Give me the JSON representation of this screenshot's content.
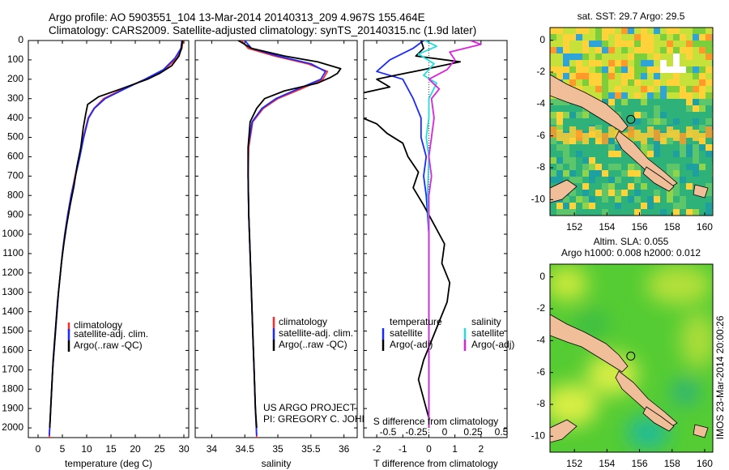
{
  "header": {
    "line1": "Argo profile: AO 5903551_104 13-Mar-2014 20140313_209 4.967S 155.464E",
    "line2": "Climatology: CARS2009. Satellite-adjusted climatology: synTS_20140315.nc (1.9d later)"
  },
  "colors": {
    "climatology": "#ff2a2a",
    "satellite": "#1a2aff",
    "argo": "#000000",
    "salinity_satellite": "#22dddd",
    "salinity_argo": "#dd22dd"
  },
  "chart_data": [
    {
      "type": "line",
      "id": "temperature",
      "title": "",
      "xlabel": "temperature (deg C)",
      "ylabel": "",
      "xlim": [
        -2,
        31
      ],
      "ylim": [
        2050,
        0
      ],
      "xticks": [
        0,
        5,
        10,
        15,
        20,
        25,
        30
      ],
      "yticks": [
        0,
        100,
        200,
        300,
        400,
        500,
        600,
        700,
        800,
        900,
        1000,
        1100,
        1200,
        1300,
        1400,
        1500,
        1600,
        1700,
        1800,
        1900,
        2000
      ],
      "legend": [
        "climatology",
        "satellite-adj. clim.",
        "Argo(..raw -QC)"
      ],
      "series": [
        {
          "name": "climatology",
          "color": "#ff2a2a",
          "points": [
            [
              29.8,
              0
            ],
            [
              29.6,
              40
            ],
            [
              28.6,
              90
            ],
            [
              26.0,
              150
            ],
            [
              22.0,
              200
            ],
            [
              17.5,
              250
            ],
            [
              13.5,
              300
            ],
            [
              11.5,
              350
            ],
            [
              10.3,
              400
            ],
            [
              9.3,
              500
            ],
            [
              8.5,
              600
            ],
            [
              7.6,
              700
            ],
            [
              6.8,
              800
            ],
            [
              6.1,
              900
            ],
            [
              5.5,
              1000
            ],
            [
              5.0,
              1100
            ],
            [
              4.6,
              1200
            ],
            [
              4.2,
              1300
            ],
            [
              3.9,
              1400
            ],
            [
              3.6,
              1500
            ],
            [
              3.3,
              1600
            ],
            [
              3.0,
              1700
            ],
            [
              2.8,
              1800
            ],
            [
              2.6,
              1900
            ],
            [
              2.4,
              2000
            ],
            [
              2.3,
              2050
            ]
          ]
        },
        {
          "name": "satellite-adj. clim.",
          "color": "#1a2aff",
          "points": [
            [
              29.6,
              0
            ],
            [
              29.4,
              40
            ],
            [
              28.2,
              90
            ],
            [
              25.8,
              150
            ],
            [
              22.0,
              200
            ],
            [
              17.8,
              250
            ],
            [
              13.8,
              300
            ],
            [
              11.6,
              350
            ],
            [
              10.4,
              400
            ],
            [
              9.4,
              500
            ],
            [
              8.6,
              600
            ],
            [
              7.7,
              700
            ],
            [
              6.8,
              800
            ],
            [
              6.1,
              900
            ],
            [
              5.5,
              1000
            ],
            [
              5.0,
              1100
            ],
            [
              4.6,
              1200
            ],
            [
              4.2,
              1300
            ],
            [
              3.9,
              1400
            ],
            [
              3.6,
              1500
            ],
            [
              3.3,
              1600
            ],
            [
              3.0,
              1700
            ],
            [
              2.8,
              1800
            ],
            [
              2.6,
              1900
            ],
            [
              2.4,
              2000
            ],
            [
              2.3,
              2040
            ]
          ]
        },
        {
          "name": "Argo(..raw -QC)",
          "color": "#000000",
          "points": [
            [
              29.7,
              0
            ],
            [
              29.5,
              40
            ],
            [
              29.0,
              80
            ],
            [
              27.5,
              130
            ],
            [
              25.0,
              170
            ],
            [
              22.5,
              200
            ],
            [
              17.0,
              250
            ],
            [
              12.5,
              290
            ],
            [
              10.2,
              330
            ],
            [
              9.8,
              380
            ],
            [
              9.3,
              450
            ],
            [
              8.8,
              550
            ],
            [
              8.0,
              650
            ],
            [
              7.4,
              750
            ],
            [
              6.6,
              850
            ],
            [
              5.9,
              950
            ],
            [
              5.3,
              1050
            ],
            [
              4.8,
              1150
            ],
            [
              4.4,
              1250
            ],
            [
              4.0,
              1350
            ],
            [
              3.7,
              1450
            ],
            [
              3.4,
              1550
            ],
            [
              3.1,
              1650
            ],
            [
              2.9,
              1750
            ],
            [
              2.7,
              1850
            ],
            [
              2.5,
              1950
            ],
            [
              2.4,
              2000
            ]
          ]
        }
      ]
    },
    {
      "type": "line",
      "id": "salinity",
      "title": "",
      "xlabel": "salinity",
      "ylabel": "",
      "xlim": [
        33.75,
        36.2
      ],
      "ylim": [
        2050,
        0
      ],
      "xticks": [
        34,
        34.5,
        35,
        35.5,
        36
      ],
      "legend": [
        "climatology",
        "satellite-adj. clim.",
        "Argo(..raw -QC)"
      ],
      "series": [
        {
          "name": "climatology",
          "color": "#ff2a2a",
          "points": [
            [
              34.45,
              0
            ],
            [
              34.55,
              40
            ],
            [
              34.95,
              80
            ],
            [
              35.45,
              120
            ],
            [
              35.75,
              160
            ],
            [
              35.68,
              200
            ],
            [
              35.35,
              250
            ],
            [
              35.0,
              300
            ],
            [
              34.78,
              350
            ],
            [
              34.62,
              420
            ],
            [
              34.56,
              550
            ],
            [
              34.55,
              700
            ],
            [
              34.56,
              900
            ],
            [
              34.58,
              1100
            ],
            [
              34.6,
              1300
            ],
            [
              34.62,
              1500
            ],
            [
              34.64,
              1700
            ],
            [
              34.66,
              1900
            ],
            [
              34.68,
              2050
            ]
          ]
        },
        {
          "name": "satellite-adj. clim.",
          "color": "#1a2aff",
          "points": [
            [
              34.5,
              0
            ],
            [
              34.6,
              40
            ],
            [
              35.0,
              80
            ],
            [
              35.5,
              120
            ],
            [
              35.72,
              160
            ],
            [
              35.65,
              200
            ],
            [
              35.3,
              250
            ],
            [
              34.97,
              300
            ],
            [
              34.76,
              350
            ],
            [
              34.61,
              420
            ],
            [
              34.55,
              550
            ],
            [
              34.55,
              700
            ],
            [
              34.56,
              900
            ],
            [
              34.58,
              1100
            ],
            [
              34.6,
              1300
            ],
            [
              34.62,
              1500
            ],
            [
              34.64,
              1700
            ],
            [
              34.66,
              1900
            ],
            [
              34.68,
              2040
            ]
          ]
        },
        {
          "name": "Argo(..raw -QC)",
          "color": "#000000",
          "points": [
            [
              34.4,
              0
            ],
            [
              34.6,
              40
            ],
            [
              35.1,
              80
            ],
            [
              35.6,
              110
            ],
            [
              35.95,
              145
            ],
            [
              35.9,
              170
            ],
            [
              35.8,
              190
            ],
            [
              35.6,
              220
            ],
            [
              35.1,
              260
            ],
            [
              34.8,
              300
            ],
            [
              34.68,
              350
            ],
            [
              34.58,
              420
            ],
            [
              34.55,
              550
            ],
            [
              34.55,
              700
            ],
            [
              34.56,
              900
            ],
            [
              34.58,
              1100
            ],
            [
              34.6,
              1300
            ],
            [
              34.62,
              1500
            ],
            [
              34.64,
              1700
            ],
            [
              34.66,
              1900
            ],
            [
              34.68,
              2000
            ]
          ]
        }
      ]
    },
    {
      "type": "line",
      "id": "difference",
      "title": "",
      "xlabel": "T difference from climatology",
      "xlabel_top": "S difference from climatology",
      "xlim": [
        -2.5,
        3
      ],
      "ylim": [
        2050,
        0
      ],
      "xticks": [
        -2,
        -1,
        0,
        1,
        2
      ],
      "xticks_top": [
        "-0.5",
        "-0.25",
        "0",
        "0.25",
        "0.5"
      ],
      "legend_left_title": "temperature",
      "legend_right_title": "salinity",
      "legend": [
        "satellite",
        "Argo(-adj)",
        "satellite",
        "Argo(-adj)"
      ],
      "series": [
        {
          "name": "temperature satellite",
          "color": "#1a2aff",
          "points": [
            [
              -0.2,
              0
            ],
            [
              -0.6,
              40
            ],
            [
              -1.5,
              100
            ],
            [
              -2.0,
              160
            ],
            [
              -1.0,
              200
            ],
            [
              -0.6,
              300
            ],
            [
              -0.3,
              400
            ],
            [
              -0.3,
              500
            ],
            [
              -0.1,
              600
            ],
            [
              -0.2,
              700
            ],
            [
              -0.1,
              800
            ],
            [
              0,
              1000
            ],
            [
              0,
              1500
            ],
            [
              0,
              2000
            ]
          ]
        },
        {
          "name": "temperature Argo(-adj)",
          "color": "#000000",
          "points": [
            [
              -0.3,
              0
            ],
            [
              -0.2,
              40
            ],
            [
              -0.5,
              80
            ],
            [
              1.2,
              110
            ],
            [
              -0.2,
              150
            ],
            [
              -1.3,
              180
            ],
            [
              -2.0,
              200
            ],
            [
              -1.5,
              240
            ],
            [
              -3.2,
              290
            ],
            [
              -2.6,
              330
            ],
            [
              -2.9,
              380
            ],
            [
              -2.0,
              430
            ],
            [
              -1.6,
              480
            ],
            [
              -1.0,
              530
            ],
            [
              -0.8,
              600
            ],
            [
              -0.4,
              680
            ],
            [
              -0.6,
              760
            ],
            [
              -0.2,
              850
            ],
            [
              0.2,
              950
            ],
            [
              0.6,
              1050
            ],
            [
              0.5,
              1150
            ],
            [
              0.8,
              1250
            ],
            [
              0.7,
              1350
            ],
            [
              0.4,
              1450
            ],
            [
              0.1,
              1550
            ],
            [
              -0.2,
              1650
            ],
            [
              -0.4,
              1750
            ],
            [
              -0.2,
              1850
            ],
            [
              0,
              1950
            ],
            [
              0,
              2000
            ]
          ]
        },
        {
          "name": "salinity satellite",
          "color": "#22dddd",
          "points": [
            [
              -0.15,
              0
            ],
            [
              0.3,
              30
            ],
            [
              -0.4,
              70
            ],
            [
              0.2,
              120
            ],
            [
              -0.2,
              180
            ],
            [
              0.3,
              220
            ],
            [
              0.0,
              300
            ],
            [
              0.0,
              400
            ],
            [
              -0.1,
              500
            ],
            [
              0.0,
              600
            ],
            [
              -0.05,
              800
            ],
            [
              0.0,
              1000
            ],
            [
              0.0,
              1500
            ],
            [
              0.0,
              2000
            ]
          ]
        },
        {
          "name": "salinity Argo(-adj)",
          "color": "#dd22dd",
          "points": [
            [
              1.6,
              0
            ],
            [
              2.0,
              20
            ],
            [
              0.8,
              60
            ],
            [
              1.0,
              100
            ],
            [
              0.7,
              150
            ],
            [
              0.0,
              200
            ],
            [
              0.4,
              250
            ],
            [
              0.1,
              300
            ],
            [
              0.2,
              400
            ],
            [
              0.1,
              500
            ],
            [
              0.0,
              600
            ],
            [
              0.1,
              700
            ],
            [
              0.0,
              800
            ],
            [
              0.0,
              1000
            ],
            [
              0.0,
              1500
            ],
            [
              0.0,
              2000
            ]
          ]
        }
      ]
    },
    {
      "type": "heatmap",
      "id": "sst_map",
      "title": "sat. SST: 29.7 Argo: 29.5",
      "xlim": [
        150.5,
        160.5
      ],
      "ylim": [
        -11,
        0.8
      ],
      "xticks": [
        152,
        154,
        156,
        158,
        160
      ],
      "yticks": [
        0,
        -2,
        -4,
        -6,
        -8,
        -10
      ],
      "float_position": [
        155.464,
        -4.967
      ]
    },
    {
      "type": "heatmap",
      "id": "sla_map",
      "title": "Altim. SLA: 0.055",
      "subtitle": "Argo h1000: 0.008 h2000: 0.012",
      "xlim": [
        150.5,
        160.5
      ],
      "ylim": [
        -11,
        0.8
      ],
      "xticks": [
        152,
        154,
        156,
        158,
        160
      ],
      "yticks": [
        0,
        -2,
        -4,
        -6,
        -8,
        -10
      ],
      "float_position": [
        155.464,
        -4.967
      ]
    }
  ],
  "notes": {
    "project": "US ARGO PROJECT",
    "pi": "PI: GREGORY C. JOHNSON",
    "stamp": "IMOS 23-Mar-2014 20:00:26"
  }
}
